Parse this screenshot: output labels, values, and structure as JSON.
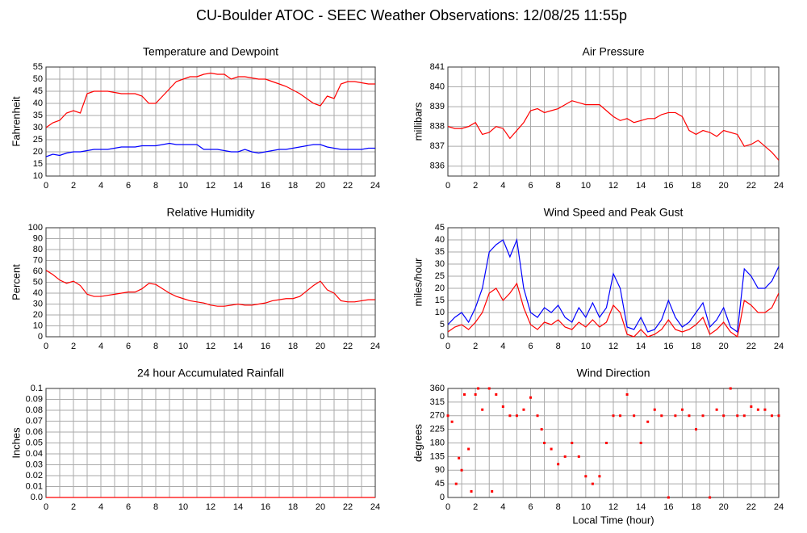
{
  "title": "CU-Boulder ATOC - SEEC Weather Observations: 12/08/25 11:55p",
  "chart_data": [
    {
      "type": "line",
      "title": "Temperature and Dewpoint",
      "ylabel": "Fahrenheit",
      "x": [
        0,
        0.5,
        1,
        1.5,
        2,
        2.5,
        3,
        3.5,
        4,
        4.5,
        5,
        5.5,
        6,
        6.5,
        7,
        7.5,
        8,
        8.5,
        9,
        9.5,
        10,
        10.5,
        11,
        11.5,
        12,
        12.5,
        13,
        13.5,
        14,
        14.5,
        15,
        15.5,
        16,
        16.5,
        17,
        17.5,
        18,
        18.5,
        19,
        19.5,
        20,
        20.5,
        21,
        21.5,
        22,
        22.5,
        23,
        23.5,
        24
      ],
      "series": [
        {
          "color": "#ff0000",
          "values": [
            30,
            32,
            33,
            36,
            37,
            36,
            44,
            45,
            45,
            45,
            44.5,
            44,
            44,
            44,
            43,
            40,
            40,
            43,
            46,
            49,
            50,
            51,
            51,
            52,
            52.5,
            52,
            52,
            50,
            51,
            51,
            50.5,
            50,
            50,
            49,
            48,
            47,
            45.5,
            44,
            42,
            40,
            39,
            43,
            42,
            48,
            49,
            49,
            48.5,
            48,
            48
          ]
        },
        {
          "color": "#0000ff",
          "values": [
            18,
            19,
            18.5,
            19.5,
            20,
            20,
            20.5,
            21,
            21,
            21,
            21.5,
            22,
            22,
            22,
            22.5,
            22.5,
            22.5,
            23,
            23.5,
            23,
            23,
            23,
            23,
            21,
            21,
            21,
            20.5,
            20,
            20,
            21,
            20,
            19.5,
            20,
            20.5,
            21,
            21,
            21.5,
            22,
            22.5,
            23,
            23,
            22,
            21.5,
            21,
            21,
            21,
            21,
            21.5,
            21.5
          ]
        }
      ],
      "xlim": [
        0,
        24
      ],
      "xticks": [
        0,
        2,
        4,
        6,
        8,
        10,
        12,
        14,
        16,
        18,
        20,
        22,
        24
      ],
      "x_minor_ticks": [
        1,
        3,
        5,
        7,
        9,
        11,
        13,
        15,
        17,
        19,
        21,
        23
      ],
      "ylim": [
        10,
        55
      ],
      "yticks": [
        10,
        15,
        20,
        25,
        30,
        35,
        40,
        45,
        50,
        55
      ],
      "grid": true
    },
    {
      "type": "line",
      "title": "Air Pressure",
      "ylabel": "millibars",
      "x": [
        0,
        0.5,
        1,
        1.5,
        2,
        2.5,
        3,
        3.5,
        4,
        4.5,
        5,
        5.5,
        6,
        6.5,
        7,
        7.5,
        8,
        8.5,
        9,
        9.5,
        10,
        10.5,
        11,
        11.5,
        12,
        12.5,
        13,
        13.5,
        14,
        14.5,
        15,
        15.5,
        16,
        16.5,
        17,
        17.5,
        18,
        18.5,
        19,
        19.5,
        20,
        20.5,
        21,
        21.5,
        22,
        22.5,
        23,
        23.5,
        24
      ],
      "series": [
        {
          "color": "#ff0000",
          "values": [
            838,
            837.9,
            837.9,
            838,
            838.2,
            837.6,
            837.7,
            838,
            837.9,
            837.4,
            837.8,
            838.2,
            838.8,
            838.9,
            838.7,
            838.8,
            838.9,
            839.1,
            839.3,
            839.2,
            839.1,
            839.1,
            839.1,
            838.8,
            838.5,
            838.3,
            838.4,
            838.2,
            838.3,
            838.4,
            838.4,
            838.6,
            838.7,
            838.7,
            838.5,
            837.8,
            837.6,
            837.8,
            837.7,
            837.5,
            837.8,
            837.7,
            837.6,
            837,
            837.1,
            837.3,
            837,
            836.7,
            836.3
          ]
        }
      ],
      "xlim": [
        0,
        24
      ],
      "xticks": [
        0,
        2,
        4,
        6,
        8,
        10,
        12,
        14,
        16,
        18,
        20,
        22,
        24
      ],
      "x_minor_ticks": [
        1,
        3,
        5,
        7,
        9,
        11,
        13,
        15,
        17,
        19,
        21,
        23
      ],
      "ylim": [
        835.5,
        841
      ],
      "yticks": [
        836,
        837,
        838,
        839,
        840,
        841
      ],
      "grid": true
    },
    {
      "type": "line",
      "title": "Relative Humidity",
      "ylabel": "Percent",
      "x": [
        0,
        0.5,
        1,
        1.5,
        2,
        2.5,
        3,
        3.5,
        4,
        4.5,
        5,
        5.5,
        6,
        6.5,
        7,
        7.5,
        8,
        8.5,
        9,
        9.5,
        10,
        10.5,
        11,
        11.5,
        12,
        12.5,
        13,
        13.5,
        14,
        14.5,
        15,
        15.5,
        16,
        16.5,
        17,
        17.5,
        18,
        18.5,
        19,
        19.5,
        20,
        20.5,
        21,
        21.5,
        22,
        22.5,
        23,
        23.5,
        24
      ],
      "series": [
        {
          "color": "#ff0000",
          "values": [
            61,
            57,
            52,
            49,
            51,
            47,
            39,
            37,
            37,
            38,
            39,
            40,
            41,
            41,
            44,
            49,
            48,
            44,
            40,
            37,
            35,
            33,
            32,
            31,
            29,
            28,
            28,
            29,
            30,
            29,
            29,
            30,
            31,
            33,
            34,
            35,
            35,
            37,
            42,
            47,
            51,
            43,
            40,
            33,
            32,
            32,
            33,
            34,
            34
          ]
        }
      ],
      "xlim": [
        0,
        24
      ],
      "xticks": [
        0,
        2,
        4,
        6,
        8,
        10,
        12,
        14,
        16,
        18,
        20,
        22,
        24
      ],
      "x_minor_ticks": [
        1,
        3,
        5,
        7,
        9,
        11,
        13,
        15,
        17,
        19,
        21,
        23
      ],
      "ylim": [
        0,
        100
      ],
      "yticks": [
        0,
        10,
        20,
        30,
        40,
        50,
        60,
        70,
        80,
        90,
        100
      ],
      "grid": true
    },
    {
      "type": "line",
      "title": "Wind Speed and Peak Gust",
      "ylabel": "miles/hour",
      "x": [
        0,
        0.5,
        1,
        1.5,
        2,
        2.5,
        3,
        3.5,
        4,
        4.5,
        5,
        5.5,
        6,
        6.5,
        7,
        7.5,
        8,
        8.5,
        9,
        9.5,
        10,
        10.5,
        11,
        11.5,
        12,
        12.5,
        13,
        13.5,
        14,
        14.5,
        15,
        15.5,
        16,
        16.5,
        17,
        17.5,
        18,
        18.5,
        19,
        19.5,
        20,
        20.5,
        21,
        21.5,
        22,
        22.5,
        23,
        23.5,
        24
      ],
      "series": [
        {
          "color": "#0000ff",
          "values": [
            5,
            8,
            10,
            6,
            12,
            20,
            35,
            38,
            40,
            33,
            40,
            20,
            10,
            8,
            12,
            10,
            13,
            8,
            6,
            12,
            8,
            14,
            8,
            12,
            26,
            20,
            4,
            3,
            8,
            2,
            3,
            7,
            15,
            8,
            4,
            6,
            10,
            14,
            4,
            7,
            12,
            4,
            2,
            28,
            25,
            20,
            20,
            23,
            29
          ]
        },
        {
          "color": "#ff0000",
          "values": [
            2,
            4,
            5,
            3,
            6,
            10,
            18,
            20,
            15,
            18,
            22,
            12,
            5,
            3,
            6,
            5,
            7,
            4,
            3,
            6,
            4,
            7,
            4,
            6,
            13,
            10,
            1,
            0,
            3,
            0,
            1,
            3,
            7,
            3,
            2,
            3,
            5,
            8,
            1,
            3,
            6,
            2,
            0,
            15,
            13,
            10,
            10,
            12,
            18
          ]
        }
      ],
      "xlim": [
        0,
        24
      ],
      "xticks": [
        0,
        2,
        4,
        6,
        8,
        10,
        12,
        14,
        16,
        18,
        20,
        22,
        24
      ],
      "x_minor_ticks": [
        1,
        3,
        5,
        7,
        9,
        11,
        13,
        15,
        17,
        19,
        21,
        23
      ],
      "ylim": [
        0,
        45
      ],
      "yticks": [
        0,
        5,
        10,
        15,
        20,
        25,
        30,
        35,
        40,
        45
      ],
      "grid": true
    },
    {
      "type": "line",
      "title": "24 hour Accumulated Rainfall",
      "ylabel": "Inches",
      "x": [
        0,
        24
      ],
      "series": [
        {
          "color": "#ff0000",
          "values": [
            0,
            0
          ]
        }
      ],
      "xlim": [
        0,
        24
      ],
      "xticks": [
        0,
        2,
        4,
        6,
        8,
        10,
        12,
        14,
        16,
        18,
        20,
        22,
        24
      ],
      "x_minor_ticks": [
        1,
        3,
        5,
        7,
        9,
        11,
        13,
        15,
        17,
        19,
        21,
        23
      ],
      "ylim": [
        0,
        0.1
      ],
      "yticks": [
        {
          "value": 0,
          "label": "0.0"
        },
        0.01,
        0.02,
        0.03,
        0.04,
        0.05,
        0.06,
        0.07,
        0.08,
        0.09,
        0.1
      ],
      "grid": true
    },
    {
      "type": "scatter",
      "title": "Wind Direction",
      "ylabel": "degrees",
      "xlabel": "Local Time (hour)",
      "x": [
        0,
        0.3,
        0.6,
        0.8,
        1,
        1.2,
        1.5,
        1.7,
        2,
        2.2,
        2.5,
        3,
        3.2,
        3.5,
        4,
        4.5,
        5,
        5.5,
        6,
        6.5,
        6.8,
        7,
        7.5,
        8,
        8.5,
        9,
        9.5,
        10,
        10.5,
        11,
        11.5,
        12,
        12.5,
        13,
        13.5,
        14,
        14.5,
        15,
        15.5,
        16,
        16.5,
        17,
        17.5,
        18,
        18.5,
        19,
        19.5,
        20,
        20.5,
        21,
        21.5,
        22,
        22.5,
        23,
        23.5,
        24
      ],
      "series": [
        {
          "color": "#ff0000",
          "values": [
            270,
            250,
            45,
            130,
            90,
            340,
            160,
            20,
            340,
            360,
            290,
            360,
            20,
            340,
            300,
            270,
            270,
            290,
            330,
            270,
            225,
            180,
            160,
            110,
            135,
            180,
            135,
            70,
            45,
            70,
            180,
            270,
            270,
            340,
            270,
            180,
            250,
            290,
            270,
            0,
            270,
            290,
            270,
            225,
            270,
            0,
            290,
            270,
            360,
            270,
            270,
            300,
            290,
            290,
            270,
            270
          ]
        }
      ],
      "xlim": [
        0,
        24
      ],
      "xticks": [
        0,
        2,
        4,
        6,
        8,
        10,
        12,
        14,
        16,
        18,
        20,
        22,
        24
      ],
      "x_minor_ticks": [
        1,
        3,
        5,
        7,
        9,
        11,
        13,
        15,
        17,
        19,
        21,
        23
      ],
      "ylim": [
        0,
        360
      ],
      "yticks": [
        0,
        45,
        90,
        135,
        180,
        225,
        270,
        315,
        360
      ],
      "grid": true
    }
  ]
}
